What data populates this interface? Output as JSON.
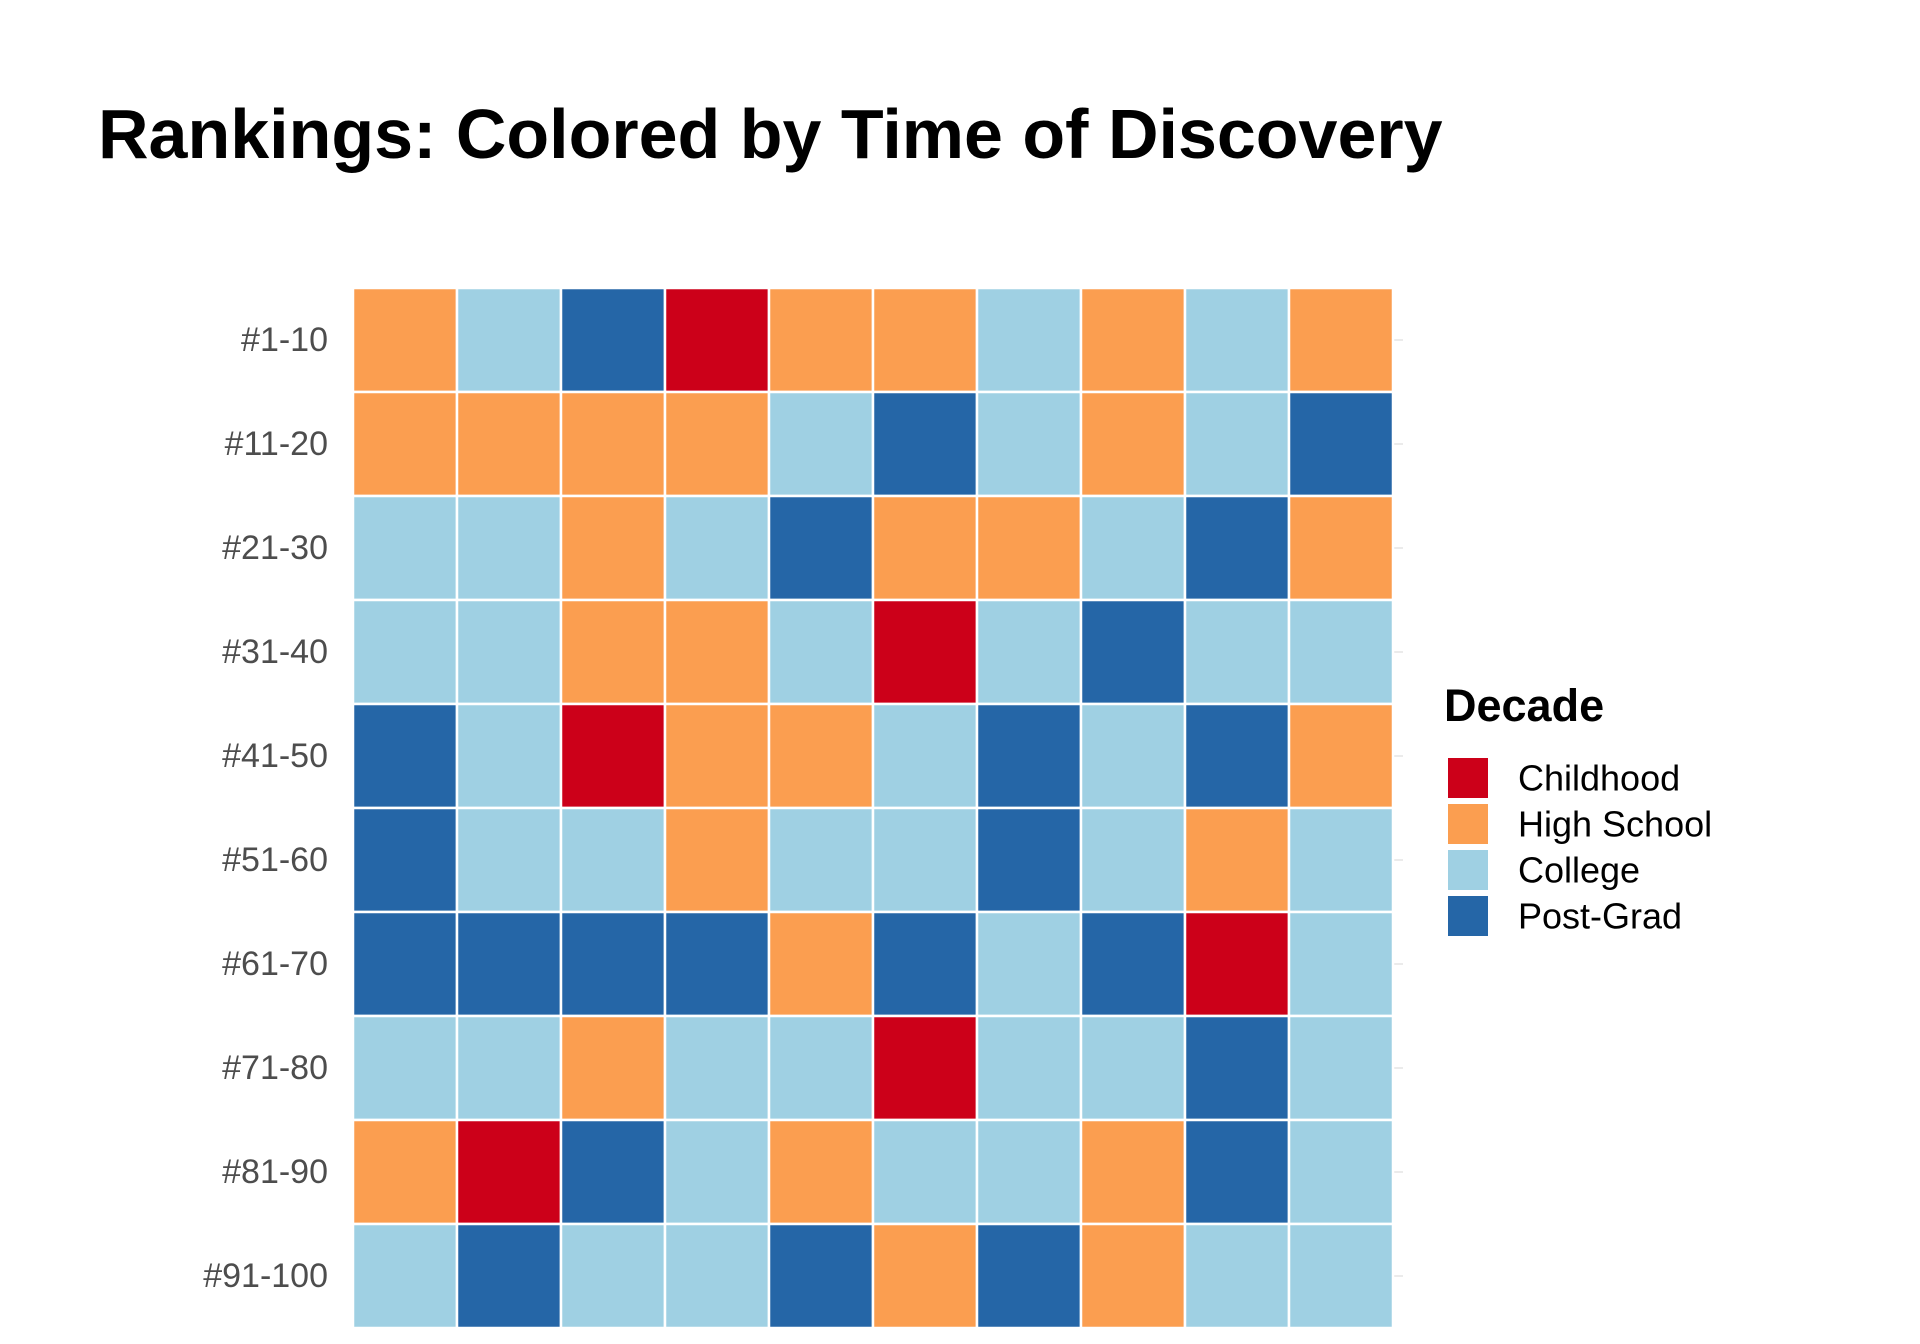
{
  "chart_data": {
    "type": "heatmap",
    "title": "Rankings: Colored by Time of Discovery",
    "xlabel": "",
    "ylabel": "",
    "rows": [
      "#1-10",
      "#11-20",
      "#21-30",
      "#31-40",
      "#41-50",
      "#51-60",
      "#61-70",
      "#71-80",
      "#81-90",
      "#91-100"
    ],
    "columns": 10,
    "legend": {
      "title": "Decade",
      "placement": "right",
      "categories": [
        {
          "name": "Childhood",
          "color": "#ca0020"
        },
        {
          "name": "High School",
          "color": "#f4a582"
        },
        {
          "name": "College",
          "color": "#92c5de"
        },
        {
          "name": "Post-Grad",
          "color": "#0571b0"
        }
      ]
    },
    "colors": {
      "Childhood": "#cc0019",
      "High School": "#fb9e50",
      "College": "#9fd0e3",
      "Post-Grad": "#2566a7"
    },
    "values": [
      [
        "High School",
        "College",
        "Post-Grad",
        "Childhood",
        "High School",
        "High School",
        "College",
        "High School",
        "College",
        "High School"
      ],
      [
        "High School",
        "High School",
        "High School",
        "High School",
        "College",
        "Post-Grad",
        "College",
        "High School",
        "College",
        "Post-Grad"
      ],
      [
        "College",
        "College",
        "High School",
        "College",
        "Post-Grad",
        "High School",
        "High School",
        "College",
        "Post-Grad",
        "High School"
      ],
      [
        "College",
        "College",
        "High School",
        "High School",
        "College",
        "Childhood",
        "College",
        "Post-Grad",
        "College",
        "College"
      ],
      [
        "Post-Grad",
        "College",
        "Childhood",
        "High School",
        "High School",
        "College",
        "Post-Grad",
        "College",
        "Post-Grad",
        "High School"
      ],
      [
        "Post-Grad",
        "College",
        "College",
        "High School",
        "College",
        "College",
        "Post-Grad",
        "College",
        "High School",
        "College"
      ],
      [
        "Post-Grad",
        "Post-Grad",
        "Post-Grad",
        "Post-Grad",
        "High School",
        "Post-Grad",
        "College",
        "Post-Grad",
        "Childhood",
        "College"
      ],
      [
        "College",
        "College",
        "High School",
        "College",
        "College",
        "Childhood",
        "College",
        "College",
        "Post-Grad",
        "College"
      ],
      [
        "High School",
        "Childhood",
        "Post-Grad",
        "College",
        "High School",
        "College",
        "College",
        "High School",
        "Post-Grad",
        "College"
      ],
      [
        "College",
        "Post-Grad",
        "College",
        "College",
        "Post-Grad",
        "High School",
        "Post-Grad",
        "High School",
        "College",
        "College"
      ]
    ],
    "grid": true
  }
}
